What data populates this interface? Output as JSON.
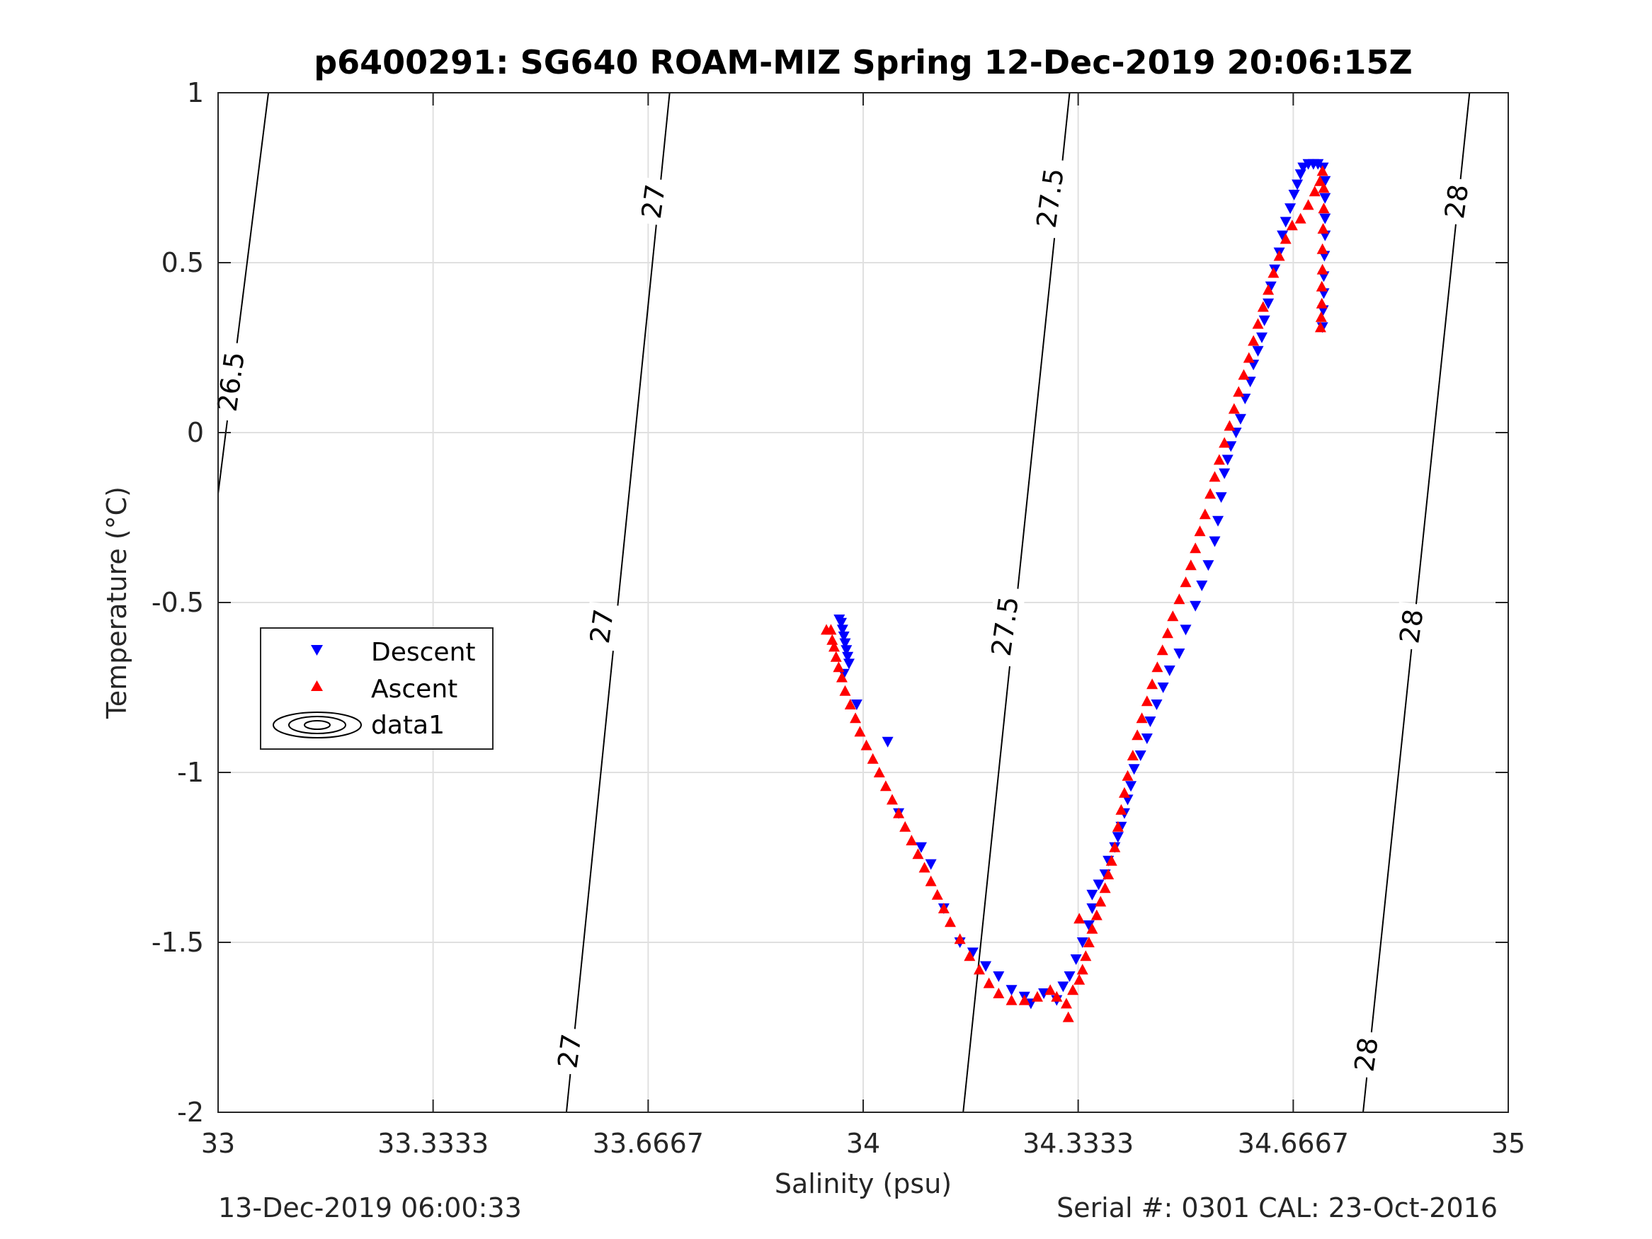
{
  "chart_data": {
    "type": "scatter",
    "title": "p6400291: SG640 ROAM-MIZ Spring 12-Dec-2019 20:06:15Z",
    "xlabel": "Salinity (psu)",
    "ylabel": "Temperature (°C)",
    "xlim": [
      33,
      35
    ],
    "ylim": [
      -2,
      1
    ],
    "x_ticks": [
      33,
      33.3333,
      33.6667,
      34,
      34.3333,
      34.6667,
      35
    ],
    "x_tick_labels": [
      "33",
      "33.3333",
      "33.6667",
      "34",
      "34.3333",
      "34.6667",
      "35"
    ],
    "y_ticks": [
      -2,
      -1.5,
      -1,
      -0.5,
      0,
      0.5,
      1
    ],
    "y_tick_labels": [
      "-2",
      "-1.5",
      "-1",
      "-0.5",
      "0",
      "0.5",
      "1"
    ],
    "grid": true,
    "legend_position": "left-middle",
    "legend": [
      "Descent",
      "Ascent",
      "data1"
    ],
    "colors": {
      "descent": "#0000ff",
      "ascent": "#ff0000",
      "contour": "#000000",
      "grid": "#e0e0e0",
      "axes": "#262626"
    },
    "contour_lines": [
      {
        "level": "26.5",
        "points": [
          [
            33.0,
            -0.18
          ],
          [
            33.078,
            1.0
          ]
        ]
      },
      {
        "level": "27",
        "points": [
          [
            33.54,
            -2.0
          ],
          [
            33.7,
            1.0
          ]
        ]
      },
      {
        "level": "27.5",
        "points": [
          [
            34.155,
            -2.0
          ],
          [
            34.32,
            1.0
          ]
        ]
      },
      {
        "level": "28",
        "points": [
          [
            34.775,
            -2.0
          ],
          [
            34.94,
            1.0
          ]
        ]
      }
    ],
    "contour_labels": [
      {
        "text": "26.5",
        "x": 33.02,
        "y": 0.15
      },
      {
        "text": "27",
        "x": 33.675,
        "y": 0.68
      },
      {
        "text": "27",
        "x": 33.595,
        "y": -0.57
      },
      {
        "text": "27",
        "x": 33.545,
        "y": -1.82
      },
      {
        "text": "27.5",
        "x": 34.29,
        "y": 0.69
      },
      {
        "text": "27.5",
        "x": 34.22,
        "y": -0.57
      },
      {
        "text": "28",
        "x": 34.92,
        "y": 0.68
      },
      {
        "text": "28",
        "x": 34.85,
        "y": -0.57
      },
      {
        "text": "28",
        "x": 34.78,
        "y": -1.83
      }
    ],
    "series": [
      {
        "name": "Descent",
        "marker": "triangle-down",
        "points": [
          [
            33.963,
            -0.55
          ],
          [
            33.966,
            -0.56
          ],
          [
            33.968,
            -0.58
          ],
          [
            33.97,
            -0.6
          ],
          [
            33.972,
            -0.62
          ],
          [
            33.974,
            -0.64
          ],
          [
            33.976,
            -0.66
          ],
          [
            33.978,
            -0.68
          ],
          [
            33.97,
            -0.71
          ],
          [
            33.99,
            -0.8
          ],
          [
            34.038,
            -0.91
          ],
          [
            34.055,
            -1.12
          ],
          [
            34.09,
            -1.22
          ],
          [
            34.105,
            -1.27
          ],
          [
            34.125,
            -1.4
          ],
          [
            34.15,
            -1.5
          ],
          [
            34.17,
            -1.53
          ],
          [
            34.19,
            -1.57
          ],
          [
            34.21,
            -1.6
          ],
          [
            34.23,
            -1.64
          ],
          [
            34.25,
            -1.66
          ],
          [
            34.26,
            -1.68
          ],
          [
            34.28,
            -1.65
          ],
          [
            34.3,
            -1.67
          ],
          [
            34.31,
            -1.63
          ],
          [
            34.32,
            -1.6
          ],
          [
            34.33,
            -1.55
          ],
          [
            34.34,
            -1.5
          ],
          [
            34.35,
            -1.45
          ],
          [
            34.355,
            -1.4
          ],
          [
            34.355,
            -1.36
          ],
          [
            34.365,
            -1.33
          ],
          [
            34.375,
            -1.3
          ],
          [
            34.38,
            -1.26
          ],
          [
            34.39,
            -1.22
          ],
          [
            34.395,
            -1.19
          ],
          [
            34.4,
            -1.16
          ],
          [
            34.405,
            -1.12
          ],
          [
            34.41,
            -1.08
          ],
          [
            34.415,
            -1.04
          ],
          [
            34.42,
            -0.99
          ],
          [
            34.43,
            -0.95
          ],
          [
            34.44,
            -0.9
          ],
          [
            34.445,
            -0.85
          ],
          [
            34.455,
            -0.8
          ],
          [
            34.465,
            -0.75
          ],
          [
            34.475,
            -0.7
          ],
          [
            34.49,
            -0.65
          ],
          [
            34.5,
            -0.58
          ],
          [
            34.515,
            -0.51
          ],
          [
            34.525,
            -0.45
          ],
          [
            34.535,
            -0.39
          ],
          [
            34.545,
            -0.32
          ],
          [
            34.55,
            -0.26
          ],
          [
            34.555,
            -0.19
          ],
          [
            34.56,
            -0.12
          ],
          [
            34.565,
            -0.08
          ],
          [
            34.57,
            -0.04
          ],
          [
            34.578,
            0.0
          ],
          [
            34.585,
            0.04
          ],
          [
            34.592,
            0.1
          ],
          [
            34.6,
            0.15
          ],
          [
            34.605,
            0.2
          ],
          [
            34.612,
            0.24
          ],
          [
            34.618,
            0.28
          ],
          [
            34.622,
            0.33
          ],
          [
            34.628,
            0.38
          ],
          [
            34.632,
            0.43
          ],
          [
            34.638,
            0.48
          ],
          [
            34.645,
            0.53
          ],
          [
            34.65,
            0.58
          ],
          [
            34.655,
            0.62
          ],
          [
            34.662,
            0.66
          ],
          [
            34.668,
            0.7
          ],
          [
            34.673,
            0.73
          ],
          [
            34.678,
            0.76
          ],
          [
            34.682,
            0.78
          ],
          [
            34.69,
            0.79
          ],
          [
            34.698,
            0.79
          ],
          [
            34.705,
            0.79
          ],
          [
            34.713,
            0.78
          ],
          [
            34.716,
            0.74
          ],
          [
            34.716,
            0.69
          ],
          [
            34.716,
            0.63
          ],
          [
            34.716,
            0.58
          ],
          [
            34.715,
            0.52
          ],
          [
            34.714,
            0.46
          ],
          [
            34.714,
            0.41
          ],
          [
            34.713,
            0.36
          ],
          [
            34.712,
            0.31
          ]
        ]
      },
      {
        "name": "Ascent",
        "marker": "triangle-up",
        "points": [
          [
            33.943,
            -0.58
          ],
          [
            33.95,
            -0.58
          ],
          [
            33.952,
            -0.61
          ],
          [
            33.955,
            -0.63
          ],
          [
            33.958,
            -0.66
          ],
          [
            33.962,
            -0.69
          ],
          [
            33.967,
            -0.72
          ],
          [
            33.972,
            -0.76
          ],
          [
            33.98,
            -0.8
          ],
          [
            33.988,
            -0.84
          ],
          [
            33.995,
            -0.88
          ],
          [
            34.005,
            -0.92
          ],
          [
            34.015,
            -0.96
          ],
          [
            34.025,
            -1.0
          ],
          [
            34.035,
            -1.04
          ],
          [
            34.045,
            -1.08
          ],
          [
            34.055,
            -1.12
          ],
          [
            34.065,
            -1.16
          ],
          [
            34.075,
            -1.2
          ],
          [
            34.085,
            -1.24
          ],
          [
            34.095,
            -1.28
          ],
          [
            34.105,
            -1.32
          ],
          [
            34.115,
            -1.36
          ],
          [
            34.125,
            -1.4
          ],
          [
            34.135,
            -1.44
          ],
          [
            34.15,
            -1.49
          ],
          [
            34.165,
            -1.54
          ],
          [
            34.18,
            -1.58
          ],
          [
            34.195,
            -1.62
          ],
          [
            34.21,
            -1.65
          ],
          [
            34.23,
            -1.67
          ],
          [
            34.25,
            -1.67
          ],
          [
            34.27,
            -1.66
          ],
          [
            34.29,
            -1.64
          ],
          [
            34.3,
            -1.66
          ],
          [
            34.315,
            -1.68
          ],
          [
            34.318,
            -1.72
          ],
          [
            34.325,
            -1.64
          ],
          [
            34.335,
            -1.61
          ],
          [
            34.34,
            -1.58
          ],
          [
            34.345,
            -1.54
          ],
          [
            34.35,
            -1.5
          ],
          [
            34.335,
            -1.43
          ],
          [
            34.355,
            -1.46
          ],
          [
            34.362,
            -1.42
          ],
          [
            34.368,
            -1.38
          ],
          [
            34.375,
            -1.34
          ],
          [
            34.38,
            -1.3
          ],
          [
            34.385,
            -1.26
          ],
          [
            34.39,
            -1.22
          ],
          [
            34.395,
            -1.16
          ],
          [
            34.4,
            -1.11
          ],
          [
            34.405,
            -1.06
          ],
          [
            34.41,
            -1.01
          ],
          [
            34.418,
            -0.95
          ],
          [
            34.425,
            -0.89
          ],
          [
            34.432,
            -0.84
          ],
          [
            34.44,
            -0.79
          ],
          [
            34.448,
            -0.74
          ],
          [
            34.456,
            -0.69
          ],
          [
            34.464,
            -0.64
          ],
          [
            34.472,
            -0.59
          ],
          [
            34.48,
            -0.54
          ],
          [
            34.49,
            -0.49
          ],
          [
            34.5,
            -0.44
          ],
          [
            34.508,
            -0.39
          ],
          [
            34.515,
            -0.34
          ],
          [
            34.522,
            -0.29
          ],
          [
            34.53,
            -0.24
          ],
          [
            34.538,
            -0.18
          ],
          [
            34.545,
            -0.13
          ],
          [
            34.552,
            -0.08
          ],
          [
            34.56,
            -0.03
          ],
          [
            34.568,
            0.02
          ],
          [
            34.575,
            0.07
          ],
          [
            34.582,
            0.12
          ],
          [
            34.59,
            0.17
          ],
          [
            34.598,
            0.22
          ],
          [
            34.605,
            0.27
          ],
          [
            34.612,
            0.32
          ],
          [
            34.62,
            0.37
          ],
          [
            34.628,
            0.42
          ],
          [
            34.636,
            0.47
          ],
          [
            34.645,
            0.52
          ],
          [
            34.655,
            0.57
          ],
          [
            34.665,
            0.61
          ],
          [
            34.678,
            0.63
          ],
          [
            34.69,
            0.67
          ],
          [
            34.7,
            0.71
          ],
          [
            34.708,
            0.74
          ],
          [
            34.712,
            0.77
          ],
          [
            34.714,
            0.72
          ],
          [
            34.714,
            0.66
          ],
          [
            34.713,
            0.6
          ],
          [
            34.712,
            0.54
          ],
          [
            34.712,
            0.48
          ],
          [
            34.711,
            0.43
          ],
          [
            34.711,
            0.38
          ],
          [
            34.71,
            0.34
          ],
          [
            34.709,
            0.31
          ]
        ]
      }
    ]
  },
  "footer": {
    "left_text": "13-Dec-2019 06:00:33",
    "right_text": "Serial #: 0301  CAL: 23-Oct-2016"
  }
}
